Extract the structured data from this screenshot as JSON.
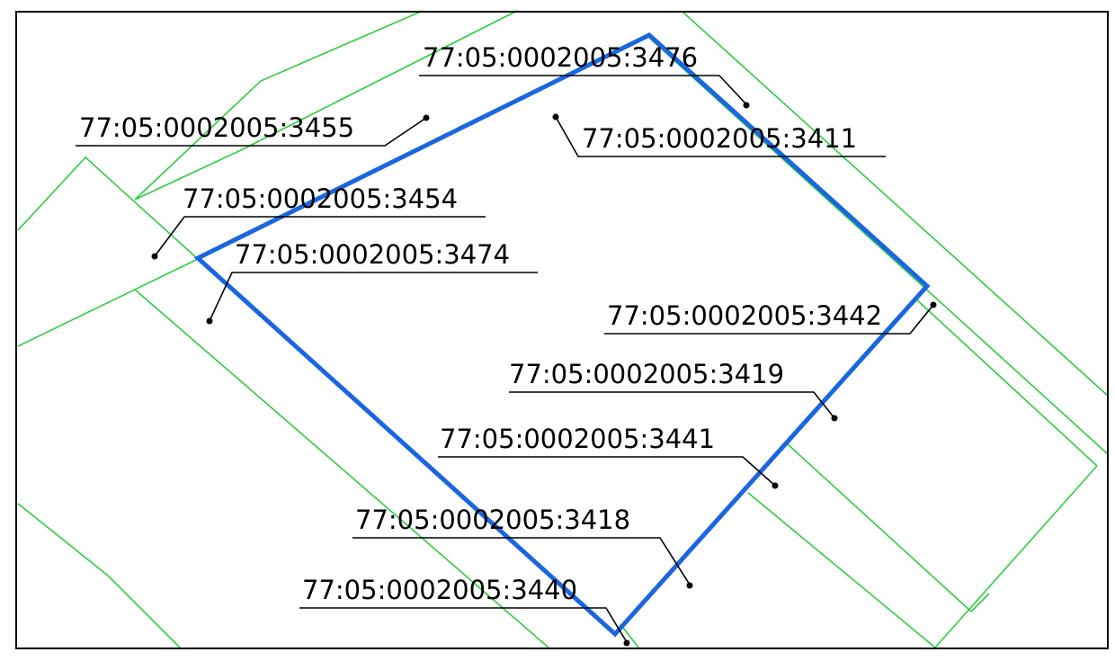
{
  "map": {
    "colors": {
      "frame": "#000000",
      "neighbor_boundary": "#2ecc40",
      "highlighted_boundary": "#1a66e0",
      "leader": "#000000",
      "label_text": "#000000"
    },
    "highlighted_parcel": "77:05:0002005:3474",
    "parcels": [
      {
        "id": "label-3476",
        "number": "77:05:0002005:3476"
      },
      {
        "id": "label-3455",
        "number": "77:05:0002005:3455"
      },
      {
        "id": "label-3411",
        "number": "77:05:0002005:3411"
      },
      {
        "id": "label-3454",
        "number": "77:05:0002005:3454"
      },
      {
        "id": "label-3474",
        "number": "77:05:0002005:3474"
      },
      {
        "id": "label-3442",
        "number": "77:05:0002005:3442"
      },
      {
        "id": "label-3419",
        "number": "77:05:0002005:3419"
      },
      {
        "id": "label-3441",
        "number": "77:05:0002005:3441"
      },
      {
        "id": "label-3418",
        "number": "77:05:0002005:3418"
      },
      {
        "id": "label-3440",
        "number": "77:05:0002005:3440"
      }
    ]
  }
}
